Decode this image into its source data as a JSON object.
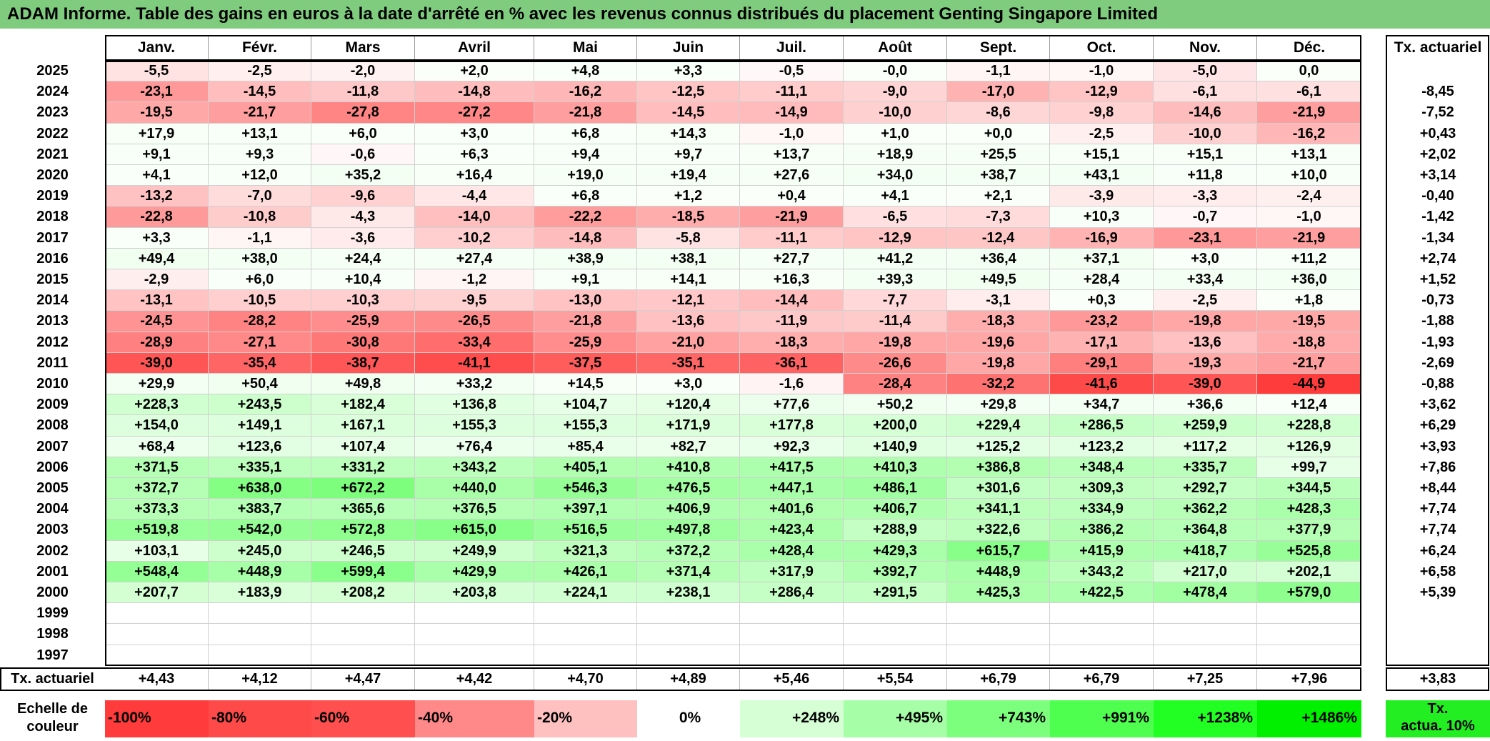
{
  "title": "ADAM Informe. Table des gains en euros à la date d'arrêté en % avec les revenus connus distribués du placement Genting Singapore Limited",
  "months": [
    "Janv.",
    "Févr.",
    "Mars",
    "Avril",
    "Mai",
    "Juin",
    "Juil.",
    "Août",
    "Sept.",
    "Oct.",
    "Nov.",
    "Déc."
  ],
  "rate_header": "Tx. actuariel",
  "rows": [
    {
      "year": "2025",
      "values": [
        "-5,5",
        "-2,5",
        "-2,0",
        "+2,0",
        "+4,8",
        "+3,3",
        "-0,5",
        "-0,0",
        "-1,1",
        "-1,0",
        "-5,0",
        "0,0"
      ],
      "rate": ""
    },
    {
      "year": "2024",
      "values": [
        "-23,1",
        "-14,5",
        "-11,8",
        "-14,8",
        "-16,2",
        "-12,5",
        "-11,1",
        "-9,0",
        "-17,0",
        "-12,9",
        "-6,1",
        "-6,1"
      ],
      "rate": "-8,45"
    },
    {
      "year": "2023",
      "values": [
        "-19,5",
        "-21,7",
        "-27,8",
        "-27,2",
        "-21,8",
        "-14,5",
        "-14,9",
        "-10,0",
        "-8,6",
        "-9,8",
        "-14,6",
        "-21,9"
      ],
      "rate": "-7,52"
    },
    {
      "year": "2022",
      "values": [
        "+17,9",
        "+13,1",
        "+6,0",
        "+3,0",
        "+6,8",
        "+14,3",
        "-1,0",
        "+1,0",
        "+0,0",
        "-2,5",
        "-10,0",
        "-16,2"
      ],
      "rate": "+0,43"
    },
    {
      "year": "2021",
      "values": [
        "+9,1",
        "+9,3",
        "-0,6",
        "+6,3",
        "+9,4",
        "+9,7",
        "+13,7",
        "+18,9",
        "+25,5",
        "+15,1",
        "+15,1",
        "+13,1"
      ],
      "rate": "+2,02"
    },
    {
      "year": "2020",
      "values": [
        "+4,1",
        "+12,0",
        "+35,2",
        "+16,4",
        "+19,0",
        "+19,4",
        "+27,6",
        "+34,0",
        "+38,7",
        "+43,1",
        "+11,8",
        "+10,0"
      ],
      "rate": "+3,14"
    },
    {
      "year": "2019",
      "values": [
        "-13,2",
        "-7,0",
        "-9,6",
        "-4,4",
        "+6,8",
        "+1,2",
        "+0,4",
        "+4,1",
        "+2,1",
        "-3,9",
        "-3,3",
        "-2,4"
      ],
      "rate": "-0,40"
    },
    {
      "year": "2018",
      "values": [
        "-22,8",
        "-10,8",
        "-4,3",
        "-14,0",
        "-22,2",
        "-18,5",
        "-21,9",
        "-6,5",
        "-7,3",
        "+10,3",
        "-0,7",
        "-1,0"
      ],
      "rate": "-1,42"
    },
    {
      "year": "2017",
      "values": [
        "+3,3",
        "-1,1",
        "-3,6",
        "-10,2",
        "-14,8",
        "-5,8",
        "-11,1",
        "-12,9",
        "-12,4",
        "-16,9",
        "-23,1",
        "-21,9"
      ],
      "rate": "-1,34"
    },
    {
      "year": "2016",
      "values": [
        "+49,4",
        "+38,0",
        "+24,4",
        "+27,4",
        "+38,9",
        "+38,1",
        "+27,7",
        "+41,2",
        "+36,4",
        "+37,1",
        "+3,0",
        "+11,2"
      ],
      "rate": "+2,74"
    },
    {
      "year": "2015",
      "values": [
        "-2,9",
        "+6,0",
        "+10,4",
        "-1,2",
        "+9,1",
        "+14,1",
        "+16,3",
        "+39,3",
        "+49,5",
        "+28,4",
        "+33,4",
        "+36,0"
      ],
      "rate": "+1,52"
    },
    {
      "year": "2014",
      "values": [
        "-13,1",
        "-10,5",
        "-10,3",
        "-9,5",
        "-13,0",
        "-12,1",
        "-14,4",
        "-7,7",
        "-3,1",
        "+0,3",
        "-2,5",
        "+1,8"
      ],
      "rate": "-0,73"
    },
    {
      "year": "2013",
      "values": [
        "-24,5",
        "-28,2",
        "-25,9",
        "-26,5",
        "-21,8",
        "-13,6",
        "-11,9",
        "-11,4",
        "-18,3",
        "-23,2",
        "-19,8",
        "-19,5"
      ],
      "rate": "-1,88"
    },
    {
      "year": "2012",
      "values": [
        "-28,9",
        "-27,1",
        "-30,8",
        "-33,4",
        "-25,9",
        "-21,0",
        "-18,3",
        "-19,8",
        "-19,6",
        "-17,1",
        "-13,6",
        "-18,8"
      ],
      "rate": "-1,93"
    },
    {
      "year": "2011",
      "values": [
        "-39,0",
        "-35,4",
        "-38,7",
        "-41,1",
        "-37,5",
        "-35,1",
        "-36,1",
        "-26,6",
        "-19,8",
        "-29,1",
        "-19,3",
        "-21,7"
      ],
      "rate": "-2,69"
    },
    {
      "year": "2010",
      "values": [
        "+29,9",
        "+50,4",
        "+49,8",
        "+33,2",
        "+14,5",
        "+3,0",
        "-1,6",
        "-28,4",
        "-32,2",
        "-41,6",
        "-39,0",
        "-44,9"
      ],
      "rate": "-0,88"
    },
    {
      "year": "2009",
      "values": [
        "+228,3",
        "+243,5",
        "+182,4",
        "+136,8",
        "+104,7",
        "+120,4",
        "+77,6",
        "+50,2",
        "+29,8",
        "+34,7",
        "+36,6",
        "+12,4"
      ],
      "rate": "+3,62"
    },
    {
      "year": "2008",
      "values": [
        "+154,0",
        "+149,1",
        "+167,1",
        "+155,3",
        "+155,3",
        "+171,9",
        "+177,8",
        "+200,0",
        "+229,4",
        "+286,5",
        "+259,9",
        "+228,8"
      ],
      "rate": "+6,29"
    },
    {
      "year": "2007",
      "values": [
        "+68,4",
        "+123,6",
        "+107,4",
        "+76,4",
        "+85,4",
        "+82,7",
        "+92,3",
        "+140,9",
        "+125,2",
        "+123,2",
        "+117,2",
        "+126,9"
      ],
      "rate": "+3,93"
    },
    {
      "year": "2006",
      "values": [
        "+371,5",
        "+335,1",
        "+331,2",
        "+343,2",
        "+405,1",
        "+410,8",
        "+417,5",
        "+410,3",
        "+386,8",
        "+348,4",
        "+335,7",
        "+99,7"
      ],
      "rate": "+7,86"
    },
    {
      "year": "2005",
      "values": [
        "+372,7",
        "+638,0",
        "+672,2",
        "+440,0",
        "+546,3",
        "+476,5",
        "+447,1",
        "+486,1",
        "+301,6",
        "+309,3",
        "+292,7",
        "+344,5"
      ],
      "rate": "+8,44"
    },
    {
      "year": "2004",
      "values": [
        "+373,3",
        "+383,7",
        "+365,6",
        "+376,5",
        "+397,1",
        "+406,9",
        "+401,6",
        "+406,7",
        "+341,1",
        "+334,9",
        "+362,2",
        "+428,3"
      ],
      "rate": "+7,74"
    },
    {
      "year": "2003",
      "values": [
        "+519,8",
        "+542,0",
        "+572,8",
        "+615,0",
        "+516,5",
        "+497,8",
        "+423,4",
        "+288,9",
        "+322,6",
        "+386,2",
        "+364,8",
        "+377,9"
      ],
      "rate": "+7,74"
    },
    {
      "year": "2002",
      "values": [
        "+103,1",
        "+245,0",
        "+246,5",
        "+249,9",
        "+321,3",
        "+372,2",
        "+428,4",
        "+429,3",
        "+615,7",
        "+415,9",
        "+418,7",
        "+525,8"
      ],
      "rate": "+6,24"
    },
    {
      "year": "2001",
      "values": [
        "+548,4",
        "+448,9",
        "+599,4",
        "+429,9",
        "+426,1",
        "+371,4",
        "+317,9",
        "+392,7",
        "+448,9",
        "+343,2",
        "+217,0",
        "+202,1"
      ],
      "rate": "+6,58"
    },
    {
      "year": "2000",
      "values": [
        "+207,7",
        "+183,9",
        "+208,2",
        "+203,8",
        "+224,1",
        "+238,1",
        "+286,4",
        "+291,5",
        "+425,3",
        "+422,5",
        "+478,4",
        "+579,0"
      ],
      "rate": "+5,39"
    },
    {
      "year": "1999",
      "values": [
        "",
        "",
        "",
        "",
        "",
        "",
        "",
        "",
        "",
        "",
        "",
        ""
      ],
      "rate": ""
    },
    {
      "year": "1998",
      "values": [
        "",
        "",
        "",
        "",
        "",
        "",
        "",
        "",
        "",
        "",
        "",
        ""
      ],
      "rate": ""
    },
    {
      "year": "1997",
      "values": [
        "",
        "",
        "",
        "",
        "",
        "",
        "",
        "",
        "",
        "",
        "",
        ""
      ],
      "rate": ""
    }
  ],
  "footer": {
    "label": "Tx. actuariel",
    "values": [
      "+4,43",
      "+4,12",
      "+4,47",
      "+4,42",
      "+4,70",
      "+4,89",
      "+5,46",
      "+5,54",
      "+6,79",
      "+6,79",
      "+7,25",
      "+7,96"
    ],
    "total": "+3,83"
  },
  "legend": {
    "label_line1": "Echelle de",
    "label_line2": "couleur",
    "steps": [
      {
        "label": "-100%",
        "color": "#ff3b3b"
      },
      {
        "label": "-80%",
        "color": "#ff4a4a"
      },
      {
        "label": "-60%",
        "color": "#ff4f4f"
      },
      {
        "label": "-40%",
        "color": "#ff8888"
      },
      {
        "label": "-20%",
        "color": "#ffc0c0"
      },
      {
        "label": "0%",
        "color": "#ffffff"
      },
      {
        "label": "+248%",
        "color": "#d6ffd6"
      },
      {
        "label": "+495%",
        "color": "#a6ffa6"
      },
      {
        "label": "+743%",
        "color": "#7cff7c"
      },
      {
        "label": "+991%",
        "color": "#4fff4f"
      },
      {
        "label": "+1238%",
        "color": "#22ff22"
      },
      {
        "label": "+1486%",
        "color": "#00f000"
      }
    ],
    "rate_label_line1": "Tx.",
    "rate_label_line2": "actua. 10%",
    "rate_color": "#22ee22"
  },
  "colors": {
    "title_bg": "#7fcc7f",
    "negative_max": "#ff3b3b",
    "positive_max": "#00f000"
  }
}
